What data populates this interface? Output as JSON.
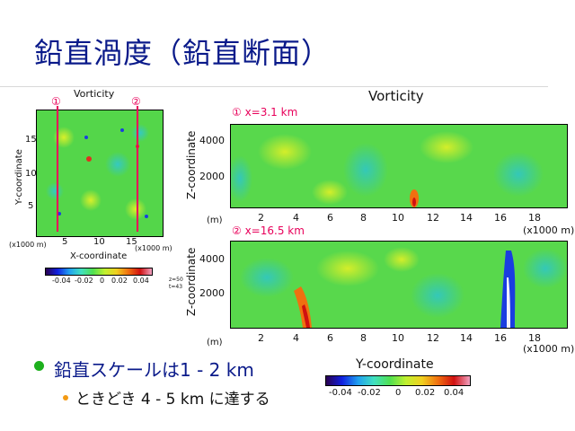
{
  "title": "鉛直渦度（鉛直断面）",
  "left_panel": {
    "title": "Vorticity",
    "y_label": "Y-coordinate",
    "x_label": "X-coordinate",
    "y_unit": "(x1000 m)",
    "x_unit": "(x1000 m)",
    "y_ticks": [
      "15",
      "10",
      "5"
    ],
    "x_ticks": [
      "5",
      "10",
      "15"
    ],
    "marker1": "①",
    "marker2": "②",
    "colorbar_ticks": [
      "-0.04",
      "-0.02",
      "0",
      "0.02",
      "0.04"
    ],
    "small_note1": "z=50",
    "small_note2": "t=43"
  },
  "right_panel": {
    "title": "Vorticity",
    "section1_label": "① x=3.1 km",
    "section2_label": "② x=16.5 km",
    "z_label": "Z-coordinate",
    "z_unit": "(m)",
    "x_unit": "(x1000 m)",
    "z_ticks": [
      "4000",
      "2000"
    ],
    "y_ticks": [
      "2",
      "4",
      "6",
      "8",
      "10",
      "12",
      "14",
      "16",
      "18"
    ],
    "y_axis_label": "Y-coordinate",
    "colorbar_ticks": [
      "-0.04",
      "-0.02",
      "0",
      "0.02",
      "0.04"
    ]
  },
  "bullets": [
    {
      "text": "鉛直スケールは1 - 2 km",
      "color": "#1db01d"
    },
    {
      "text": "ときどき 4 - 5 km に達する",
      "color": "#f39a13"
    }
  ]
}
